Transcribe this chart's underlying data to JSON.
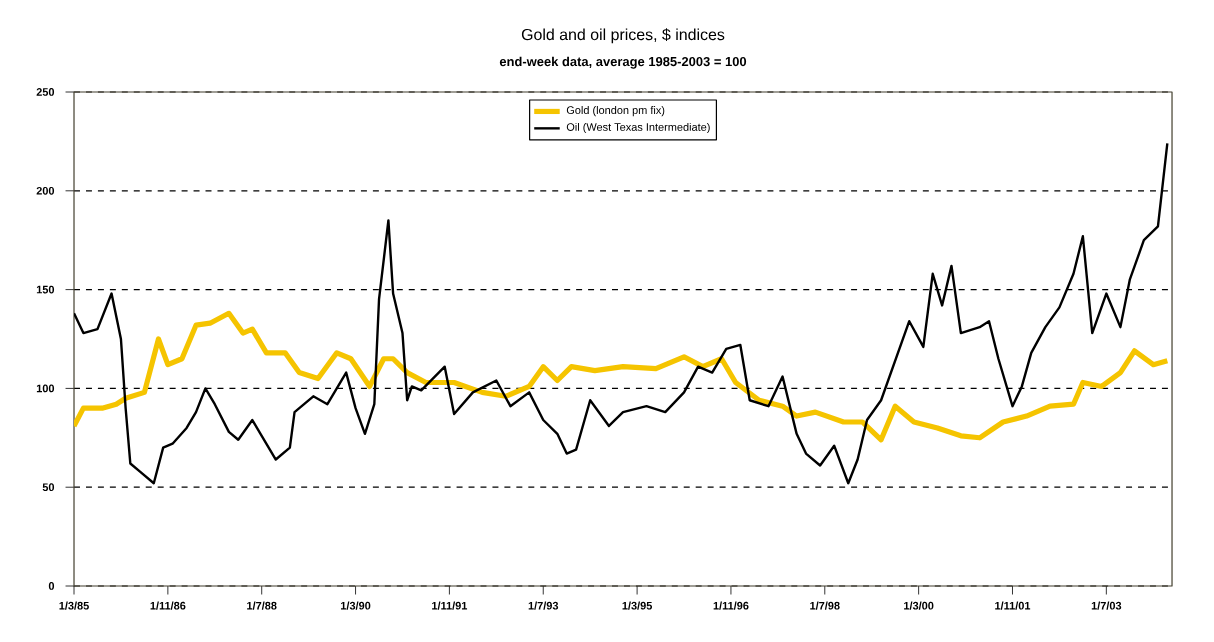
{
  "chart_data": {
    "type": "line",
    "title": "Gold and oil prices, $ indices",
    "subtitle": "end-week data, average 1985-2003 = 100",
    "series": [
      {
        "name": "Gold (london pm fix)",
        "color": "#f5c400",
        "x": [
          "1985-03",
          "1985-05",
          "1985-09",
          "1985-12",
          "1986-02",
          "1986-06",
          "1986-09",
          "1986-11",
          "1987-02",
          "1987-05",
          "1987-08",
          "1987-12",
          "1988-03",
          "1988-05",
          "1988-08",
          "1988-12",
          "1989-03",
          "1989-07",
          "1989-11",
          "1990-02",
          "1990-06",
          "1990-09",
          "1990-11",
          "1991-02",
          "1991-06",
          "1991-12",
          "1992-06",
          "1992-11",
          "1993-04",
          "1993-07",
          "1993-10",
          "1994-01",
          "1994-06",
          "1994-12",
          "1995-07",
          "1996-01",
          "1996-05",
          "1996-09",
          "1996-12",
          "1997-05",
          "1997-10",
          "1998-01",
          "1998-05",
          "1998-11",
          "1999-03",
          "1999-07",
          "1999-10",
          "2000-02",
          "2000-07",
          "2000-12",
          "2001-04",
          "2001-09",
          "2002-02",
          "2002-07",
          "2002-12",
          "2003-02",
          "2003-06",
          "2003-10",
          "2004-01",
          "2004-05",
          "2004-08"
        ],
        "values": [
          81,
          90,
          90,
          92,
          95,
          98,
          125,
          112,
          115,
          132,
          133,
          138,
          128,
          130,
          118,
          118,
          108,
          105,
          118,
          115,
          101,
          115,
          115,
          108,
          103,
          103,
          98,
          96,
          101,
          111,
          104,
          111,
          109,
          111,
          110,
          116,
          111,
          115,
          103,
          94,
          91,
          86,
          88,
          83,
          83,
          74,
          91,
          83,
          80,
          76,
          75,
          83,
          86,
          91,
          92,
          103,
          101,
          108,
          119,
          112,
          114
        ]
      },
      {
        "name": "Oil (West Texas Intermediate)",
        "color": "#000000",
        "x": [
          "1985-03",
          "1985-05",
          "1985-08",
          "1985-11",
          "1986-01",
          "1986-02",
          "1986-03",
          "1986-05",
          "1986-08",
          "1986-10",
          "1986-12",
          "1987-03",
          "1987-05",
          "1987-07",
          "1987-09",
          "1987-12",
          "1988-02",
          "1988-05",
          "1988-07",
          "1988-10",
          "1989-01",
          "1989-02",
          "1989-06",
          "1989-09",
          "1990-01",
          "1990-03",
          "1990-05",
          "1990-07",
          "1990-08",
          "1990-10",
          "1990-11",
          "1991-01",
          "1991-02",
          "1991-03",
          "1991-05",
          "1991-10",
          "1991-12",
          "1992-04",
          "1992-09",
          "1992-12",
          "1993-04",
          "1993-07",
          "1993-10",
          "1993-12",
          "1994-02",
          "1994-05",
          "1994-09",
          "1994-12",
          "1995-05",
          "1995-09",
          "1996-01",
          "1996-04",
          "1996-07",
          "1996-10",
          "1997-01",
          "1997-03",
          "1997-07",
          "1997-10",
          "1998-01",
          "1998-03",
          "1998-06",
          "1998-09",
          "1998-12",
          "1999-02",
          "1999-04",
          "1999-07",
          "1999-10",
          "2000-01",
          "2000-04",
          "2000-06",
          "2000-08",
          "2000-10",
          "2000-12",
          "2001-04",
          "2001-06",
          "2001-08",
          "2001-11",
          "2002-01",
          "2002-03",
          "2002-06",
          "2002-09",
          "2002-12",
          "2003-02",
          "2003-04",
          "2003-07",
          "2003-10",
          "2003-12",
          "2004-03",
          "2004-06",
          "2004-08"
        ],
        "values": [
          138,
          128,
          130,
          148,
          125,
          90,
          62,
          58,
          52,
          70,
          72,
          80,
          88,
          100,
          92,
          78,
          74,
          84,
          76,
          64,
          70,
          88,
          96,
          92,
          108,
          90,
          77,
          92,
          145,
          185,
          148,
          128,
          94,
          101,
          99,
          111,
          87,
          98,
          104,
          91,
          98,
          84,
          77,
          67,
          69,
          94,
          81,
          88,
          91,
          88,
          98,
          111,
          108,
          120,
          122,
          94,
          91,
          106,
          77,
          67,
          61,
          71,
          52,
          64,
          84,
          94,
          114,
          134,
          121,
          158,
          142,
          162,
          128,
          131,
          134,
          115,
          91,
          101,
          118,
          131,
          141,
          158,
          177,
          128,
          148,
          131,
          155,
          175,
          182,
          224
        ]
      }
    ],
    "xlim": [
      "1985-03",
      "2004-09"
    ],
    "xticks": [
      {
        "value": "1985-03",
        "label": "1/3/85"
      },
      {
        "value": "1986-11",
        "label": "1/11/86"
      },
      {
        "value": "1988-07",
        "label": "1/7/88"
      },
      {
        "value": "1990-03",
        "label": "1/3/90"
      },
      {
        "value": "1991-11",
        "label": "1/11/91"
      },
      {
        "value": "1993-07",
        "label": "1/7/93"
      },
      {
        "value": "1995-03",
        "label": "1/3/95"
      },
      {
        "value": "1996-11",
        "label": "1/11/96"
      },
      {
        "value": "1998-07",
        "label": "1/7/98"
      },
      {
        "value": "2000-03",
        "label": "1/3/00"
      },
      {
        "value": "2001-11",
        "label": "1/11/01"
      },
      {
        "value": "2003-07",
        "label": "1/7/03"
      }
    ],
    "ylim": [
      0,
      250
    ],
    "yticks": [
      0,
      50,
      100,
      150,
      200,
      250
    ],
    "grid": "y",
    "legend": "top",
    "line_style": "solid"
  }
}
